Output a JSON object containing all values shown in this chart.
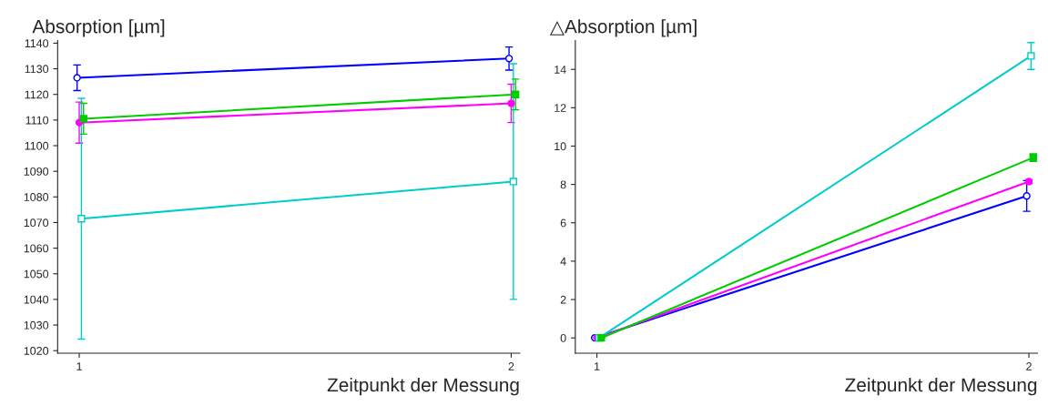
{
  "chart_data": [
    {
      "type": "line",
      "ylabel": "Absorption [µm]",
      "xlabel": "Zeitpunkt der Messung",
      "xlim": [
        0.95,
        2.02
      ],
      "xticks": [
        1,
        2
      ],
      "ylim": [
        1019,
        1141
      ],
      "yticks": [
        1020,
        1030,
        1040,
        1050,
        1060,
        1070,
        1080,
        1090,
        1100,
        1110,
        1120,
        1130,
        1140
      ],
      "grid": false,
      "legend": false,
      "series": [
        {
          "color": "#0000ff",
          "marker": "circle",
          "x": [
            0.995,
            1.995
          ],
          "values": [
            1126.5,
            1134
          ],
          "errors": [
            5,
            4.5
          ]
        },
        {
          "color": "#ff00ff",
          "marker": "circle",
          "x": [
            1,
            2
          ],
          "values": [
            1109,
            1116.5
          ],
          "errors": [
            8,
            7.5
          ]
        },
        {
          "color": "#00cccc",
          "marker": "square",
          "x": [
            1.005,
            2.005
          ],
          "values": [
            1071.5,
            1086
          ],
          "errors": [
            47,
            46
          ]
        },
        {
          "color": "#00cc00",
          "marker": "square",
          "x": [
            1.01,
            2.01
          ],
          "values": [
            1110.5,
            1120
          ],
          "errors": [
            6,
            6
          ]
        }
      ]
    },
    {
      "type": "line",
      "ylabel": "△Absorption [µm]",
      "xlabel": "Zeitpunkt der Messung",
      "xlim": [
        0.95,
        2.02
      ],
      "xticks": [
        1,
        2
      ],
      "ylim": [
        -0.8,
        15.5
      ],
      "yticks": [
        0,
        2,
        4,
        6,
        8,
        10,
        12,
        14
      ],
      "grid": false,
      "legend": false,
      "series": [
        {
          "color": "#0000ff",
          "marker": "circle",
          "x": [
            0.995,
            1.995
          ],
          "values": [
            0,
            7.4
          ],
          "errors": [
            0,
            0.8
          ]
        },
        {
          "color": "#ff00ff",
          "marker": "circle",
          "x": [
            1,
            2
          ],
          "values": [
            0,
            8.15
          ],
          "errors": [
            0,
            0.1
          ]
        },
        {
          "color": "#00cccc",
          "marker": "square",
          "x": [
            1.005,
            2.005
          ],
          "values": [
            0,
            14.7
          ],
          "errors": [
            0,
            0.7
          ]
        },
        {
          "color": "#00cc00",
          "marker": "square",
          "x": [
            1.01,
            2.01
          ],
          "values": [
            0,
            9.4
          ],
          "errors": [
            0,
            0.2
          ]
        }
      ]
    }
  ]
}
